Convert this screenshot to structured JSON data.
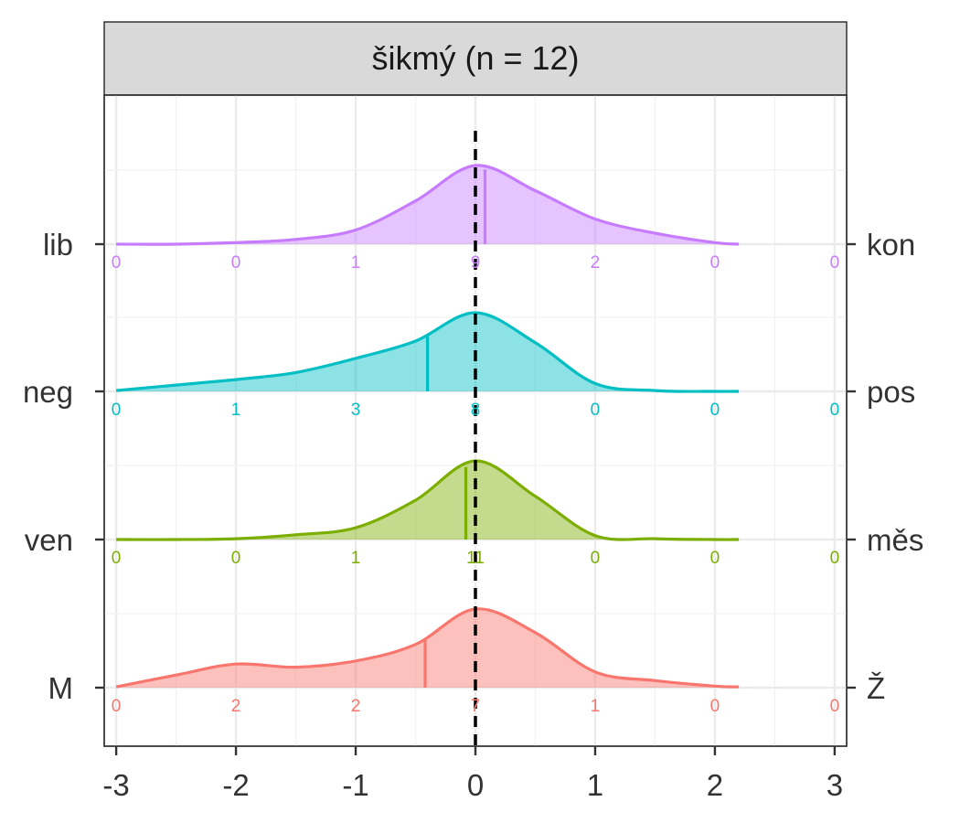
{
  "chart_data": {
    "type": "ridgeline",
    "title": "šikmý (n = 12)",
    "xlabel": "",
    "ylabel": "",
    "xlim": [
      -3.1,
      3.1
    ],
    "x_ticks": [
      "-3",
      "-2",
      "-1",
      "0",
      "1",
      "2",
      "3"
    ],
    "x_tick_values": [
      -3,
      -2,
      -1,
      0,
      1,
      2,
      3
    ],
    "reference_line_x": 0,
    "grid": true,
    "count_positions": [
      -3,
      -2,
      -1,
      0,
      1,
      2,
      3
    ],
    "series": [
      {
        "left_label": "M",
        "right_label": "Ž",
        "color": "#F8766D",
        "median": -0.42,
        "counts": [
          "0",
          "2",
          "2",
          "7",
          "1",
          "0",
          "0"
        ],
        "density_x": [
          -3,
          -2.5,
          -2,
          -1.5,
          -1,
          -0.5,
          0,
          0.5,
          1,
          1.5,
          2,
          2.2
        ],
        "density_y": [
          0.01,
          0.16,
          0.3,
          0.26,
          0.34,
          0.55,
          1.0,
          0.7,
          0.2,
          0.09,
          0.02,
          0.01
        ]
      },
      {
        "left_label": "ven",
        "right_label": "měs",
        "color": "#7CAE00",
        "median": -0.08,
        "counts": [
          "0",
          "0",
          "1",
          "11",
          "0",
          "0",
          "0"
        ],
        "density_x": [
          -3,
          -2.5,
          -2,
          -1.5,
          -1,
          -0.5,
          0,
          0.5,
          1,
          1.5,
          2,
          2.2
        ],
        "density_y": [
          0.0,
          0.0,
          0.01,
          0.06,
          0.15,
          0.5,
          1.0,
          0.55,
          0.05,
          0.01,
          0.0,
          0.0
        ]
      },
      {
        "left_label": "neg",
        "right_label": "pos",
        "color": "#00BFC4",
        "median": -0.4,
        "counts": [
          "0",
          "1",
          "3",
          "8",
          "0",
          "0",
          "0"
        ],
        "density_x": [
          -3,
          -2.5,
          -2,
          -1.5,
          -1,
          -0.5,
          0,
          0.5,
          1,
          1.5,
          2,
          2.2
        ],
        "density_y": [
          0.01,
          0.08,
          0.15,
          0.24,
          0.42,
          0.64,
          1.0,
          0.62,
          0.1,
          0.01,
          0.0,
          0.0
        ]
      },
      {
        "left_label": "lib",
        "right_label": "kon",
        "color": "#C77CFF",
        "median": 0.08,
        "counts": [
          "0",
          "0",
          "1",
          "9",
          "2",
          "0",
          "0"
        ],
        "density_x": [
          -3,
          -2.5,
          -2,
          -1.5,
          -1,
          -0.5,
          0,
          0.5,
          1,
          1.5,
          2,
          2.2
        ],
        "density_y": [
          0.0,
          0.0,
          0.02,
          0.06,
          0.18,
          0.55,
          1.0,
          0.68,
          0.32,
          0.14,
          0.02,
          0.0
        ]
      }
    ]
  }
}
